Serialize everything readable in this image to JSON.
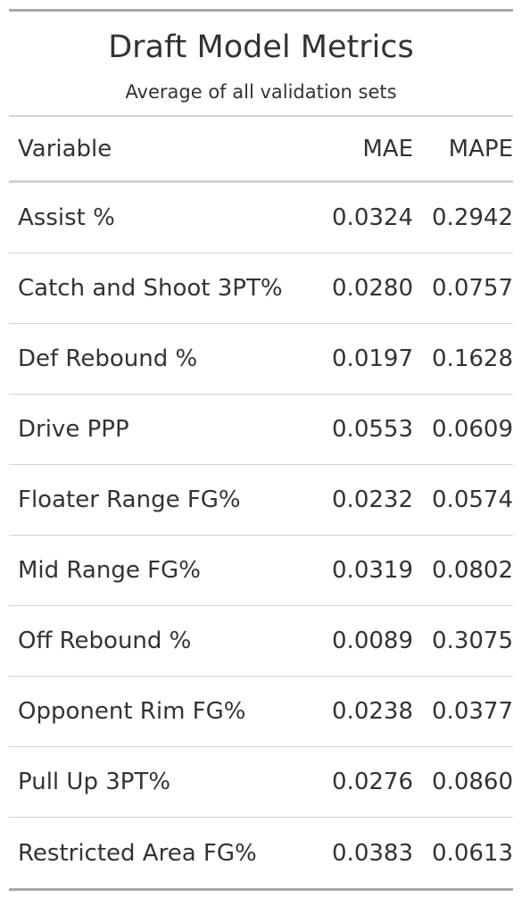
{
  "table": {
    "title": "Draft Model Metrics",
    "subtitle": "Average of all validation sets",
    "columns": {
      "variable": "Variable",
      "mae": "MAE",
      "mape": "MAPE"
    },
    "rows": [
      {
        "variable": "Assist %",
        "mae": "0.0324",
        "mape": "0.2942"
      },
      {
        "variable": "Catch and Shoot 3PT%",
        "mae": "0.0280",
        "mape": "0.0757"
      },
      {
        "variable": "Def Rebound %",
        "mae": "0.0197",
        "mape": "0.1628"
      },
      {
        "variable": "Drive PPP",
        "mae": "0.0553",
        "mape": "0.0609"
      },
      {
        "variable": "Floater Range FG%",
        "mae": "0.0232",
        "mape": "0.0574"
      },
      {
        "variable": "Mid Range FG%",
        "mae": "0.0319",
        "mape": "0.0802"
      },
      {
        "variable": "Off Rebound %",
        "mae": "0.0089",
        "mape": "0.3075"
      },
      {
        "variable": "Opponent Rim FG%",
        "mae": "0.0238",
        "mape": "0.0377"
      },
      {
        "variable": "Pull Up 3PT%",
        "mae": "0.0276",
        "mape": "0.0860"
      },
      {
        "variable": "Restricted Area FG%",
        "mae": "0.0383",
        "mape": "0.0613"
      }
    ]
  }
}
